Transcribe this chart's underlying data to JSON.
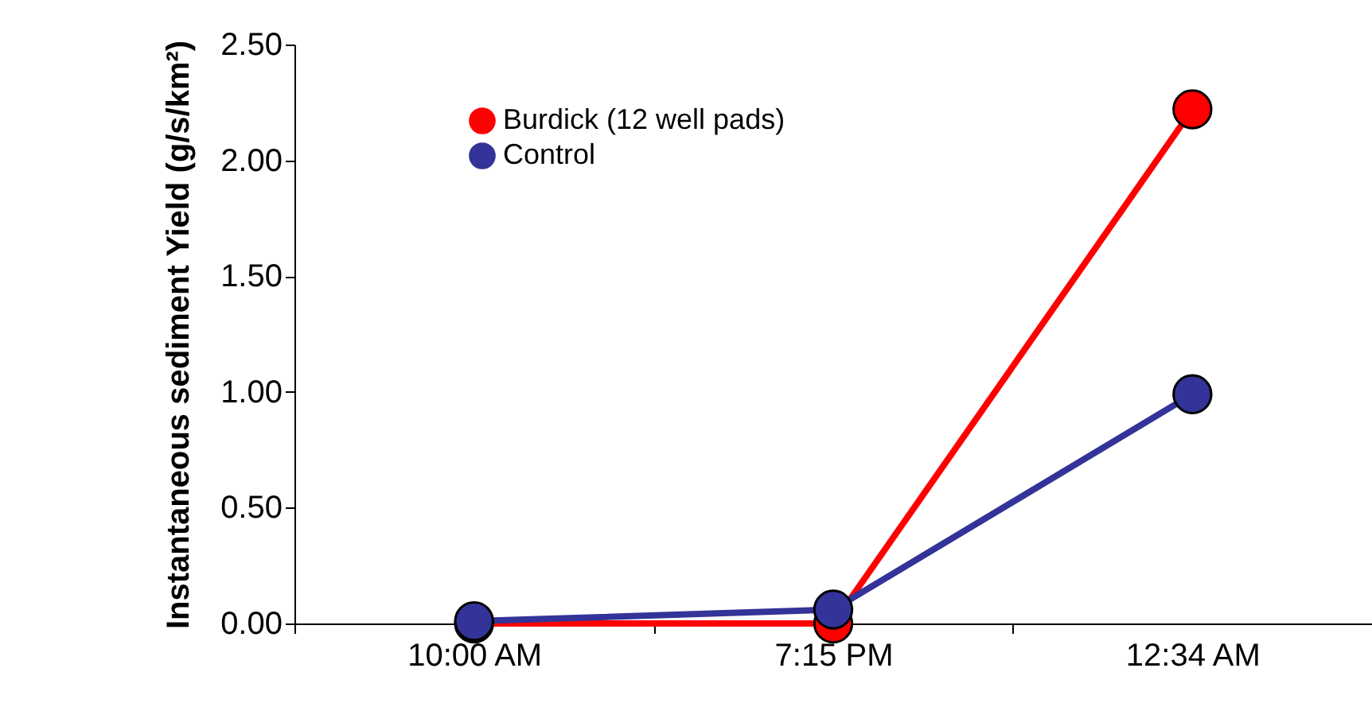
{
  "chart_data": {
    "type": "line",
    "ylabel": "Instantaneous sediment Yield\n(g/s/km²)",
    "categories": [
      "10:00 AM",
      "7:15 PM",
      "12:34 AM"
    ],
    "series": [
      {
        "name": "Burdick (12 well pads)",
        "color": "#ff0000",
        "values": [
          0.0,
          0.0,
          2.22
        ]
      },
      {
        "name": "Control",
        "color": "#333399",
        "values": [
          0.01,
          0.06,
          0.99
        ]
      }
    ],
    "ylim": [
      0,
      2.5
    ],
    "yticks": [
      {
        "value": 0,
        "label": "0.00"
      },
      {
        "value": 0.5,
        "label": "0.50"
      },
      {
        "value": 1,
        "label": "1.00"
      },
      {
        "value": 1.5,
        "label": "1.50"
      },
      {
        "value": 2,
        "label": "2.00"
      },
      {
        "value": 2.5,
        "label": "2.50"
      }
    ],
    "grid": false,
    "legend": "top left",
    "marker": "circle",
    "line_style": "solid"
  }
}
